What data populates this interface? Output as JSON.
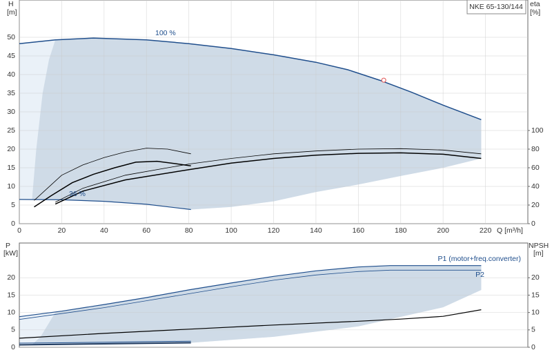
{
  "chart_data": [
    {
      "type": "line",
      "title": "NKE 65-130/144",
      "y_label": "H",
      "y_unit": "[m]",
      "y2_label": "eta",
      "y2_unit": "[%]",
      "x_label": "Q [m³/h]",
      "xlim": [
        0,
        240
      ],
      "xticks": [
        0,
        20,
        40,
        60,
        80,
        100,
        120,
        140,
        160,
        180,
        200,
        220
      ],
      "ylim": [
        0,
        60
      ],
      "yticks": [
        0,
        5,
        10,
        15,
        20,
        25,
        30,
        35,
        40,
        45,
        50
      ],
      "y2lim": [
        0,
        240
      ],
      "y2ticks": [
        0,
        20,
        40,
        60,
        80,
        100
      ],
      "grid": true,
      "shade_color": "#cfdbe7",
      "shade_light_color": "#eaf1f8",
      "marker": {
        "x": 172,
        "value": 38.5,
        "color": "#e05050"
      },
      "series": [
        {
          "name": "100 %",
          "color": "#1f4e8c",
          "width": 1.5,
          "edge": "top",
          "x": [
            0,
            17,
            35,
            60,
            80,
            100,
            120,
            140,
            155,
            170,
            185,
            200,
            218
          ],
          "values": [
            48.3,
            49.3,
            49.8,
            49.3,
            48.3,
            47,
            45.3,
            43.3,
            41.3,
            38.5,
            35.3,
            31.8,
            27.9
          ]
        },
        {
          "name": "36 %",
          "color": "#1f4e8c",
          "width": 1.2,
          "edge": "base",
          "x": [
            0,
            20,
            40,
            60,
            81
          ],
          "values": [
            6.5,
            6.4,
            6,
            5.2,
            3.8
          ]
        },
        {
          "edge": "lower",
          "x": [
            218,
            200,
            180,
            160,
            140,
            120,
            100,
            81
          ],
          "values": [
            17.5,
            15,
            12.8,
            10.5,
            8.5,
            6,
            4.5,
            3.8
          ]
        },
        {
          "edge": "left",
          "x": [
            6,
            8,
            11,
            14,
            17
          ],
          "values": [
            6.5,
            20,
            35,
            44,
            49.3
          ]
        },
        {
          "color": "#000000",
          "width": 0.8,
          "axis": "y2",
          "x": [
            7,
            20,
            30,
            40,
            50,
            60,
            70,
            81
          ],
          "values": [
            25,
            52,
            63,
            71,
            77,
            81,
            80,
            75
          ]
        },
        {
          "color": "#000000",
          "width": 1.5,
          "axis": "y2",
          "x": [
            7,
            15,
            25,
            35,
            45,
            55,
            65,
            75,
            81
          ],
          "values": [
            18,
            30,
            44,
            53,
            60,
            66,
            67,
            64,
            62
          ]
        },
        {
          "color": "#000000",
          "width": 0.8,
          "axis": "y2",
          "x": [
            17,
            30,
            50,
            80,
            100,
            120,
            140,
            160,
            180,
            200,
            218
          ],
          "values": [
            23,
            38,
            52,
            64,
            70,
            75,
            78,
            80,
            80.5,
            79,
            75
          ]
        },
        {
          "color": "#000000",
          "width": 1.5,
          "axis": "y2",
          "x": [
            17,
            30,
            50,
            80,
            100,
            120,
            140,
            160,
            180,
            200,
            218
          ],
          "values": [
            21,
            35,
            47,
            58,
            65,
            70,
            73.5,
            75.5,
            76,
            74.5,
            70
          ]
        }
      ]
    },
    {
      "type": "line",
      "y_label": "P",
      "y_unit": "[kW]",
      "y2_label": "NPSH",
      "y2_unit": "[m]",
      "xlim": [
        0,
        240
      ],
      "ylim": [
        0,
        30
      ],
      "yticks": [
        0,
        5,
        10,
        15,
        20
      ],
      "y2lim": [
        0,
        30
      ],
      "y2ticks": [
        0,
        5,
        10,
        15,
        20
      ],
      "grid": true,
      "shade_color": "#cfdbe7",
      "shade_light_color": "#eaf1f8",
      "series": [
        {
          "name": "P1 (motor+freq.converter)",
          "color": "#1f4e8c",
          "width": 1.2,
          "edge": "top",
          "x": [
            0,
            20,
            40,
            60,
            80,
            100,
            120,
            140,
            160,
            175,
            218
          ],
          "values": [
            8.8,
            10.4,
            12.3,
            14.3,
            16.5,
            18.5,
            20.4,
            22,
            23.1,
            23.5,
            23.5
          ]
        },
        {
          "name": "P2",
          "color": "#1f4e8c",
          "width": 0.8,
          "x": [
            0,
            20,
            40,
            60,
            80,
            100,
            120,
            140,
            160,
            175,
            218
          ],
          "values": [
            8,
            9.7,
            11.4,
            13.4,
            15.4,
            17.4,
            19.3,
            20.8,
            21.8,
            22.2,
            22.2
          ]
        },
        {
          "edge": "lower",
          "x": [
            218,
            200,
            160,
            120,
            81
          ],
          "values": [
            16.5,
            11.5,
            6,
            3,
            1.3
          ]
        },
        {
          "edge": "left",
          "x": [
            6,
            10,
            14,
            17
          ],
          "values": [
            0.75,
            3,
            7,
            10
          ]
        },
        {
          "color": "#1f3a5f",
          "width": 2,
          "edge": "base",
          "x": [
            0,
            20,
            40,
            60,
            81
          ],
          "values": [
            0.7,
            0.85,
            1,
            1.15,
            1.3
          ]
        },
        {
          "color": "#1f4e8c",
          "width": 1,
          "x": [
            0,
            20,
            40,
            60,
            81
          ],
          "values": [
            1.2,
            1.3,
            1.45,
            1.6,
            1.75
          ]
        },
        {
          "color": "#000000",
          "width": 1.2,
          "axis": "y2",
          "x": [
            0,
            40,
            80,
            120,
            160,
            180,
            200,
            218
          ],
          "values": [
            2.6,
            4,
            5.2,
            6.4,
            7.5,
            8.1,
            8.9,
            10.8
          ]
        }
      ]
    }
  ]
}
